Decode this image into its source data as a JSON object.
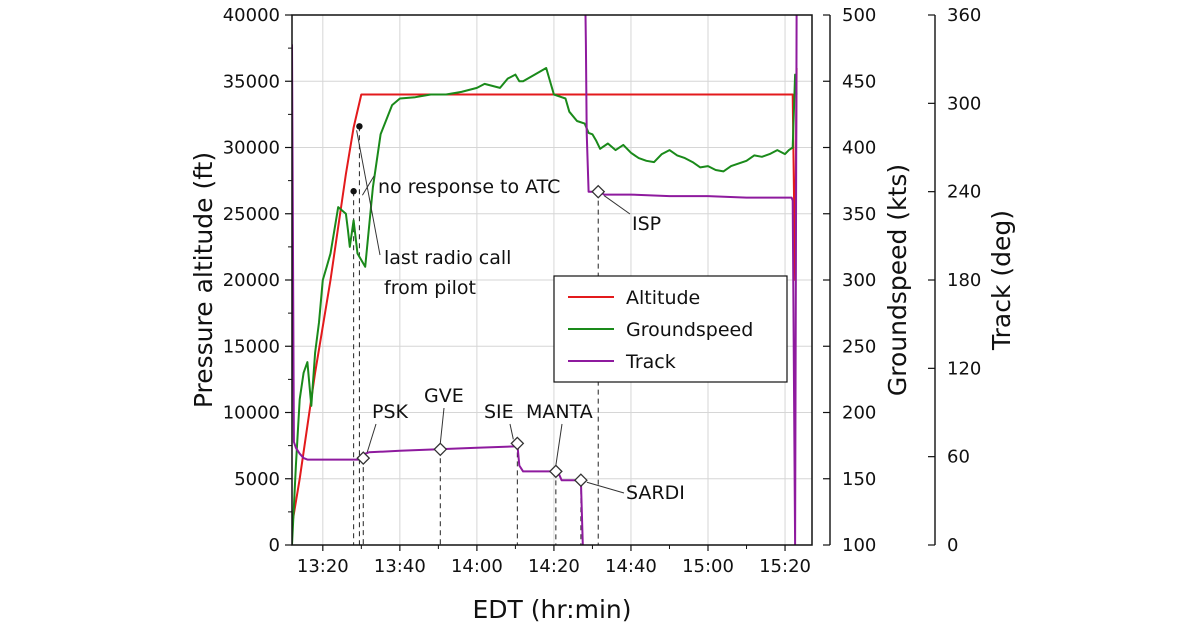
{
  "chart_data": {
    "type": "line",
    "xlabel": "EDT (hr:min)",
    "x_ticks": [
      "13:20",
      "13:40",
      "14:00",
      "14:20",
      "14:40",
      "15:00",
      "15:20"
    ],
    "x_tick_minutes": [
      800,
      820,
      840,
      860,
      880,
      900,
      920
    ],
    "xlim_minutes": [
      792,
      927
    ],
    "grid": true,
    "axes": {
      "altitude": {
        "label": "Pressure altitude (ft)",
        "ylim": [
          0,
          40000
        ],
        "ticks": [
          "0",
          "5000",
          "10000",
          "15000",
          "20000",
          "25000",
          "30000",
          "35000",
          "40000"
        ]
      },
      "groundspeed": {
        "label": "Groundspeed (kts)",
        "ylim": [
          100,
          500
        ],
        "ticks": [
          "100",
          "150",
          "200",
          "250",
          "300",
          "350",
          "400",
          "450",
          "500"
        ]
      },
      "track": {
        "label": "Track (deg)",
        "ylim": [
          0,
          360
        ],
        "ticks": [
          "0",
          "60",
          "120",
          "180",
          "240",
          "300",
          "360"
        ]
      }
    },
    "legend": {
      "placement": "center-right",
      "entries": [
        {
          "name": "Altitude",
          "color": "#e31a1c"
        },
        {
          "name": "Groundspeed",
          "color": "#1a8a1a"
        },
        {
          "name": "Track",
          "color": "#8e1a9e"
        }
      ]
    },
    "series": [
      {
        "name": "Altitude",
        "axis": "altitude",
        "color": "#e31a1c",
        "x": [
          792,
          794,
          796,
          798,
          800,
          802,
          804,
          806,
          808,
          810,
          900,
          922,
          922.6,
          923
        ],
        "y": [
          1500,
          5000,
          9000,
          13000,
          16500,
          20000,
          24000,
          28000,
          31500,
          34000,
          34000,
          34000,
          20000,
          36000
        ]
      },
      {
        "name": "Groundspeed",
        "axis": "groundspeed",
        "color": "#1a8a1a",
        "x": [
          792,
          793,
          794,
          795,
          796,
          797,
          798,
          799,
          800,
          801,
          802,
          804,
          806,
          806.5,
          807,
          808,
          809,
          811,
          813,
          815,
          818,
          820,
          824,
          828,
          832,
          836,
          840,
          842,
          846,
          848,
          850,
          851,
          852,
          855,
          858,
          860,
          862,
          863,
          864,
          866,
          868,
          869,
          870,
          871,
          872,
          874,
          876,
          878,
          880,
          882,
          884,
          886,
          888,
          890,
          892,
          894,
          896,
          898,
          900,
          902,
          904,
          906,
          908,
          910,
          912,
          914,
          916,
          918,
          920,
          921,
          922,
          922.6,
          923
        ],
        "y": [
          100,
          160,
          210,
          230,
          238,
          205,
          245,
          268,
          300,
          310,
          320,
          355,
          350,
          338,
          325,
          345,
          320,
          310,
          370,
          410,
          432,
          437,
          438,
          440,
          440,
          442,
          445,
          448,
          445,
          452,
          455,
          450,
          450,
          455,
          460,
          440,
          438,
          437,
          427,
          420,
          418,
          411,
          410,
          405,
          399,
          403,
          398,
          402,
          396,
          392,
          390,
          389,
          395,
          398,
          394,
          392,
          389,
          385,
          386,
          383,
          382,
          386,
          388,
          390,
          394,
          393,
          395,
          398,
          395,
          398,
          400,
          455,
          440
        ]
      },
      {
        "name": "Track",
        "axis": "track",
        "color": "#8e1a9e",
        "x": [
          792,
          792.5,
          793,
          794,
          795,
          796,
          798,
          800,
          802,
          806,
          808,
          810,
          810.5,
          811,
          812,
          820,
          830,
          840,
          850,
          850.5,
          851,
          852,
          855,
          858,
          860,
          861,
          862,
          865,
          866,
          867,
          867.5,
          868,
          868.2,
          868.3,
          868.5,
          869,
          870,
          871,
          871.5,
          872,
          873,
          880,
          890,
          900,
          910,
          920,
          921.7,
          922,
          922.6,
          923
        ],
        "y": [
          340,
          70,
          66,
          62,
          59,
          58,
          58,
          58,
          58,
          58,
          58,
          58,
          60,
          62,
          63,
          64,
          65,
          66,
          67,
          69,
          54,
          50,
          50,
          50,
          50,
          50,
          44,
          44,
          44,
          44,
          0,
          null,
          360,
          340,
          280,
          240,
          240,
          240,
          240,
          240,
          238,
          238,
          237,
          237,
          236,
          236,
          236,
          234,
          0,
          360
        ]
      }
    ],
    "annotations": [
      {
        "text": "no response to ATC",
        "kind": "event"
      },
      {
        "text": "last radio call",
        "kind": "event"
      },
      {
        "text": "from pilot",
        "kind": "event"
      },
      {
        "text": "PSK",
        "kind": "waypoint"
      },
      {
        "text": "GVE",
        "kind": "waypoint"
      },
      {
        "text": "SIE",
        "kind": "waypoint"
      },
      {
        "text": "MANTA",
        "kind": "waypoint"
      },
      {
        "text": "SARDI",
        "kind": "waypoint"
      },
      {
        "text": "ISP",
        "kind": "waypoint"
      }
    ],
    "event_markers": [
      {
        "label_index": 1,
        "time_min": 808,
        "altitude_ft": 26700
      },
      {
        "label_index": 0,
        "time_min": 809.5,
        "altitude_ft": 31600
      }
    ],
    "waypoint_markers": [
      {
        "name": "PSK",
        "time_min": 810.5,
        "track_deg": 59
      },
      {
        "name": "GVE",
        "time_min": 830.5,
        "track_deg": 65
      },
      {
        "name": "SIE",
        "time_min": 850.5,
        "track_deg": 69
      },
      {
        "name": "MANTA",
        "time_min": 860.5,
        "track_deg": 50
      },
      {
        "name": "SARDI",
        "time_min": 867,
        "track_deg": 44
      },
      {
        "name": "ISP",
        "time_min": 871.5,
        "track_deg": 240
      }
    ]
  }
}
